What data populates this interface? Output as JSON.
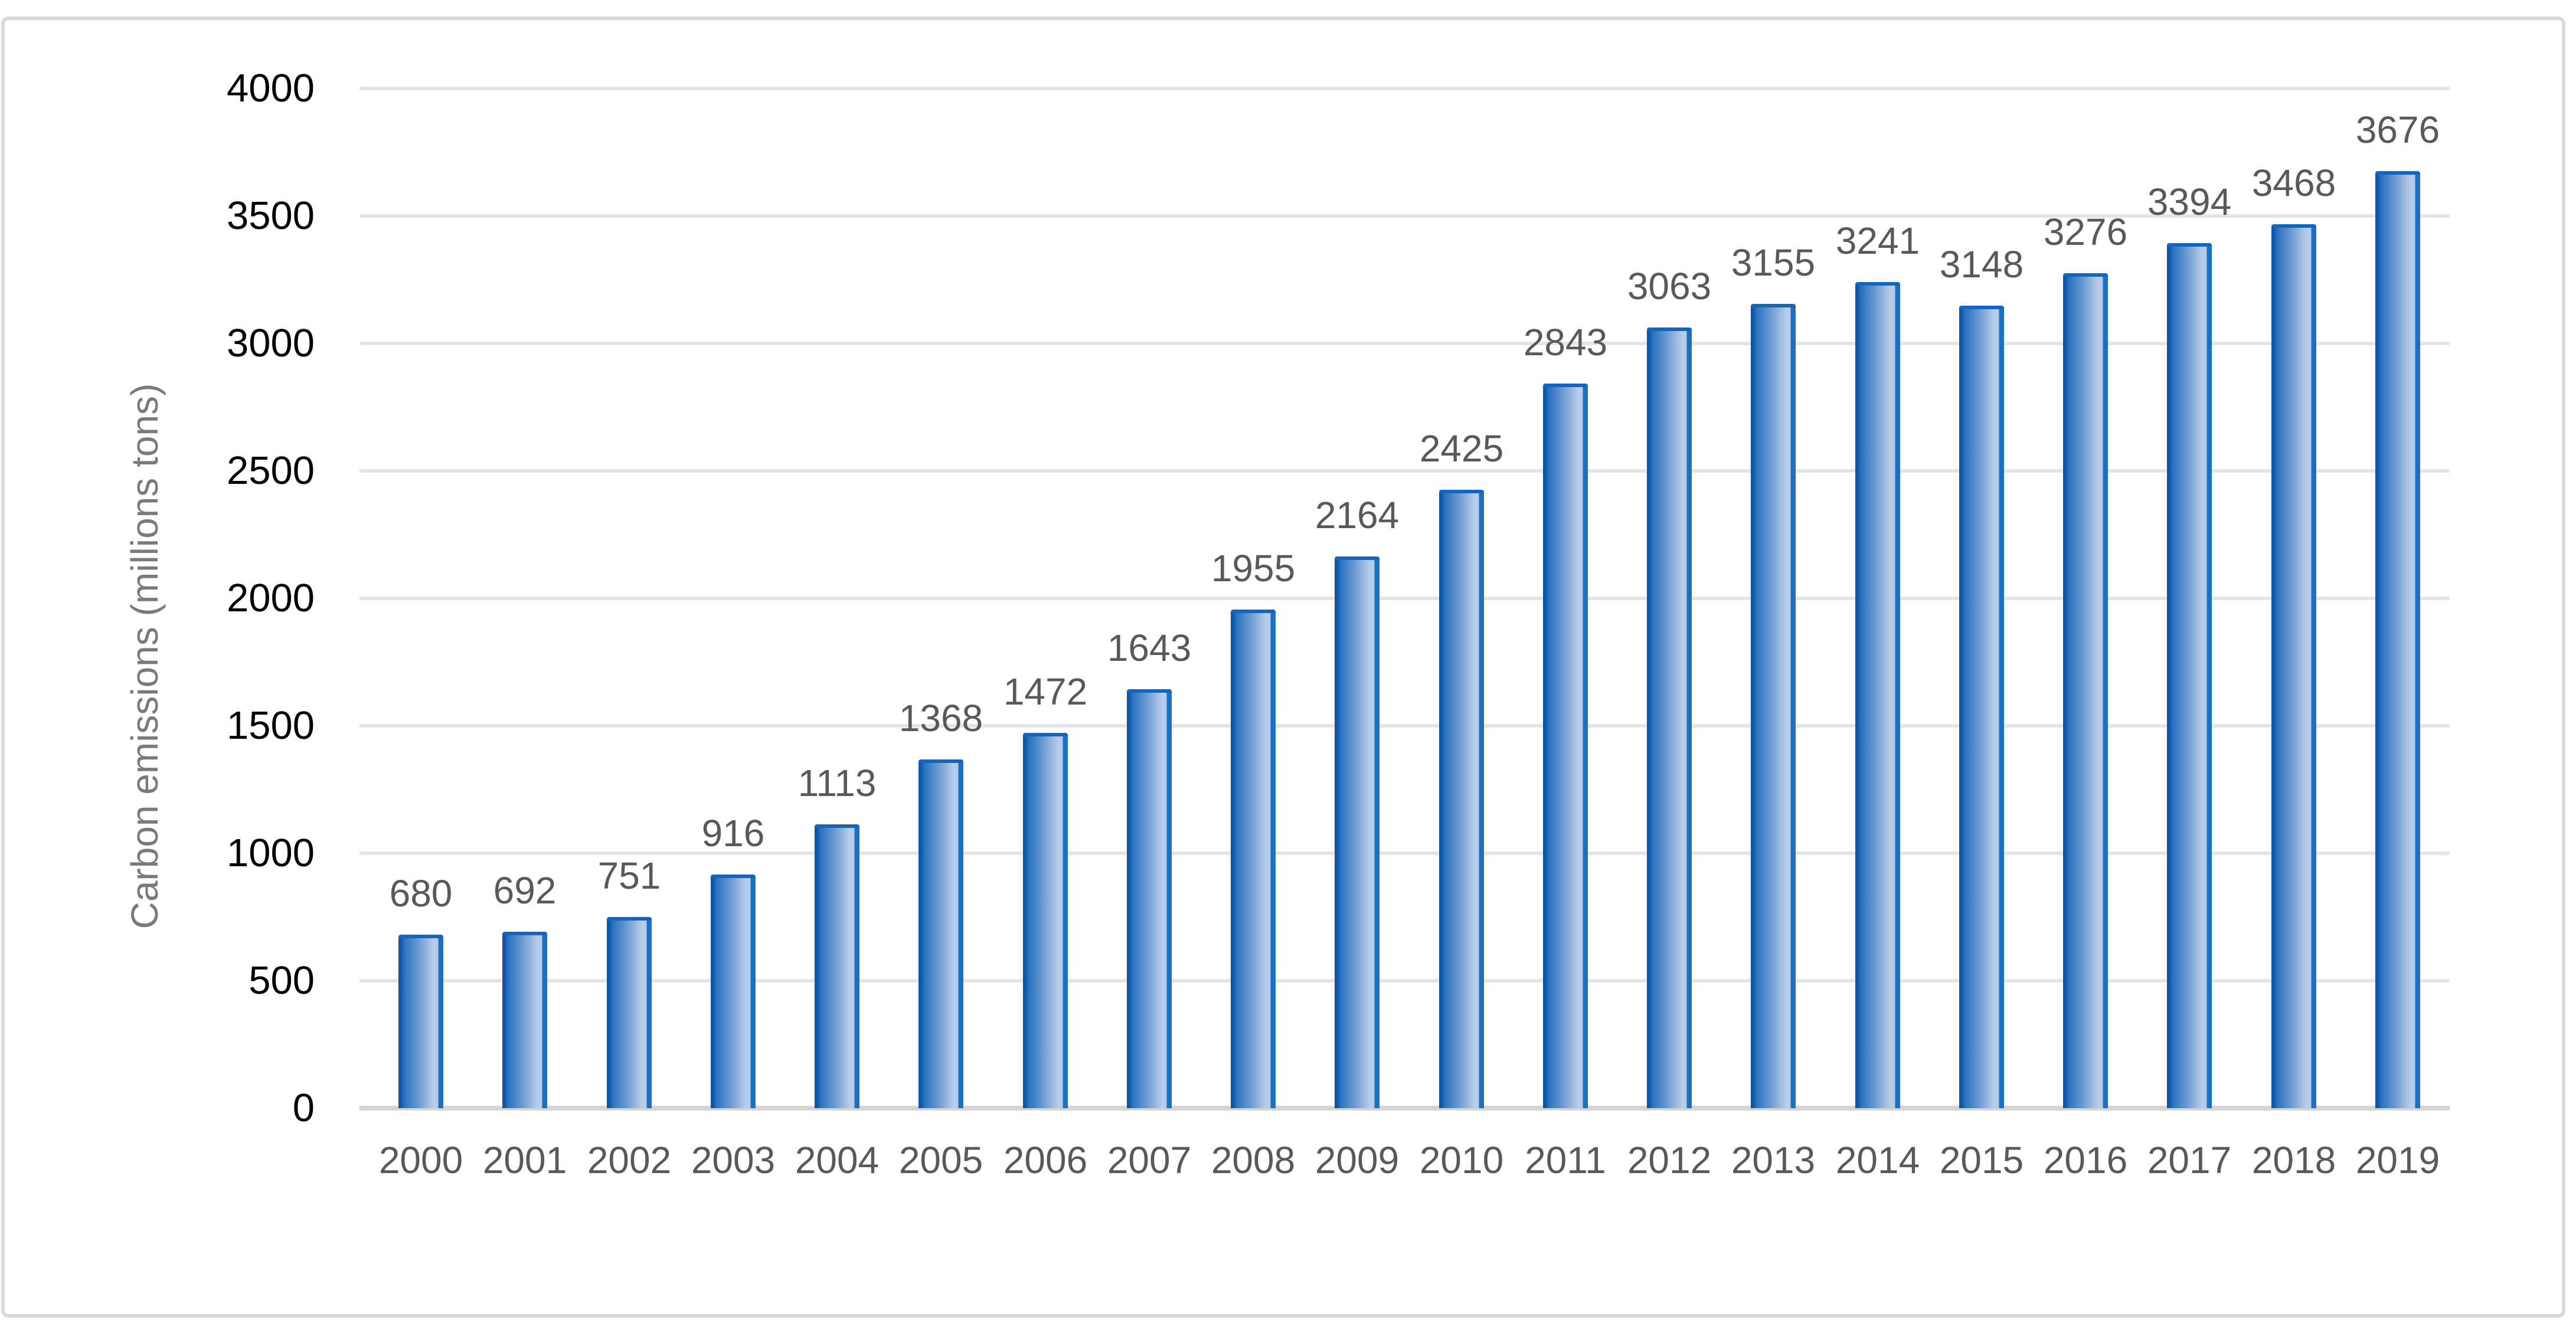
{
  "figure": {
    "frame_border_color": "#d9d9d9",
    "background_color": "#ffffff"
  },
  "chart_data": {
    "type": "bar",
    "title": "",
    "categories": [
      "2000",
      "2001",
      "2002",
      "2003",
      "2004",
      "2005",
      "2006",
      "2007",
      "2008",
      "2009",
      "2010",
      "2011",
      "2012",
      "2013",
      "2014",
      "2015",
      "2016",
      "2017",
      "2018",
      "2019"
    ],
    "values": [
      680,
      692,
      751,
      916,
      1113,
      1368,
      1472,
      1643,
      1955,
      2164,
      2425,
      2843,
      3063,
      3155,
      3241,
      3148,
      3276,
      3394,
      3468,
      3676
    ],
    "xlabel": "",
    "ylabel": "Carbon emissions (millions tons)",
    "ylim": [
      0,
      4000
    ],
    "yticks": [
      0,
      500,
      1000,
      1500,
      2000,
      2500,
      3000,
      3500,
      4000
    ],
    "grid": true,
    "legend": false,
    "data_labels_shown": true,
    "colors": {
      "bar_edge_dark": "#0e57a8",
      "bar_gradient_start": "#2a72c0",
      "bar_gradient_mid": "#6c9bd2",
      "bar_gradient_light": "#b7cce9",
      "bar_right_strip": "#1b70c4",
      "bar_top_cap": "#1466ba",
      "gridline": "#e5e5e5",
      "axis_line": "#d4d4d4",
      "data_label": "#595959",
      "x_tick_label": "#595959",
      "y_tick_label": "#000000",
      "y_axis_title": "#7a7a7a"
    }
  }
}
